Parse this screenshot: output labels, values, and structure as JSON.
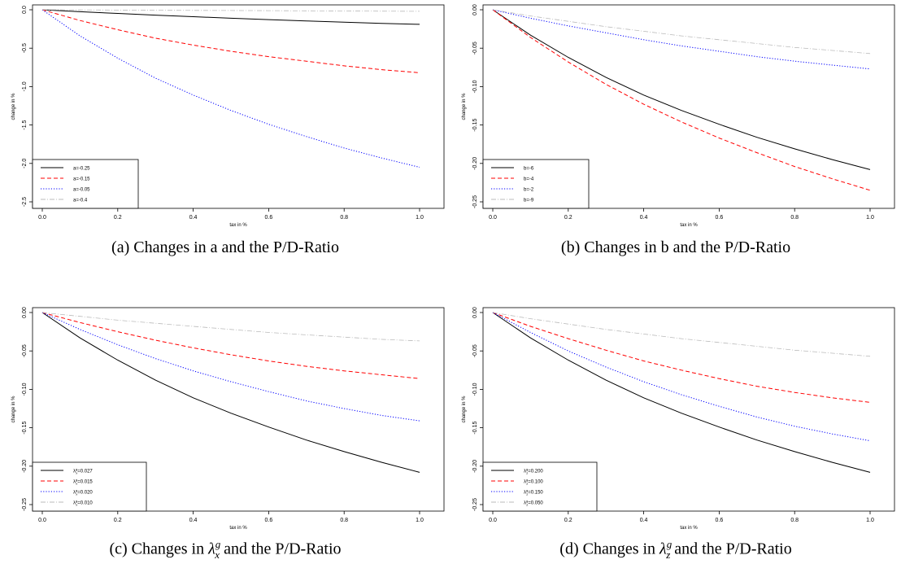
{
  "figure": {
    "captions": [
      {
        "prefix": "(a) Changes in a and the P/D-Ratio"
      },
      {
        "prefix": "(b) Changes in b and the P/D-Ratio"
      },
      {
        "prefix": "(c) Changes in ",
        "symbol": "λ",
        "sup": "g",
        "sub": "x",
        "suffix": " and the P/D-Ratio"
      },
      {
        "prefix": "(d) Changes in ",
        "symbol": "λ",
        "sup": "g",
        "sub": "z",
        "suffix": " and the P/D-Ratio"
      }
    ]
  },
  "chart_data": [
    {
      "type": "line",
      "xlabel": "tax in %",
      "ylabel": "change in %",
      "xlim": [
        0,
        1
      ],
      "ylim": [
        -2.5,
        0
      ],
      "xticks": [
        "0.0",
        "0.2",
        "0.4",
        "0.6",
        "0.8",
        "1.0"
      ],
      "yticks": [
        "0.0",
        "-0.5",
        "-1.0",
        "-1.5",
        "-2.0",
        "-2.5"
      ],
      "ytick_values": [
        0,
        -0.5,
        -1.0,
        -1.5,
        -2.0,
        -2.5
      ],
      "legend_position": "bottom-left",
      "series": [
        {
          "name": "a=-0.25",
          "color": "#000000",
          "dash": "solid",
          "x": [
            0,
            0.1,
            0.2,
            0.3,
            0.4,
            0.5,
            0.6,
            0.7,
            0.8,
            0.9,
            1.0
          ],
          "y": [
            0,
            -0.025,
            -0.048,
            -0.07,
            -0.09,
            -0.11,
            -0.128,
            -0.145,
            -0.162,
            -0.177,
            -0.19
          ]
        },
        {
          "name": "a=-0.15",
          "color": "#ff0000",
          "dash": "dashed",
          "x": [
            0,
            0.1,
            0.2,
            0.3,
            0.4,
            0.5,
            0.6,
            0.7,
            0.8,
            0.9,
            1.0
          ],
          "y": [
            0,
            -0.14,
            -0.26,
            -0.37,
            -0.46,
            -0.54,
            -0.61,
            -0.67,
            -0.73,
            -0.78,
            -0.82
          ]
        },
        {
          "name": "a=-0.05",
          "color": "#0000ff",
          "dash": "dotted",
          "x": [
            0,
            0.1,
            0.2,
            0.3,
            0.4,
            0.5,
            0.6,
            0.7,
            0.8,
            0.9,
            1.0
          ],
          "y": [
            0,
            -0.34,
            -0.63,
            -0.89,
            -1.11,
            -1.31,
            -1.49,
            -1.65,
            -1.8,
            -1.93,
            -2.05
          ]
        },
        {
          "name": "a=-0.4",
          "color": "#bbbbbb",
          "dash": "dashdot",
          "x": [
            0,
            0.1,
            0.2,
            0.3,
            0.4,
            0.5,
            0.6,
            0.7,
            0.8,
            0.9,
            1.0
          ],
          "y": [
            0,
            -0.002,
            -0.004,
            -0.006,
            -0.008,
            -0.01,
            -0.012,
            -0.014,
            -0.016,
            -0.018,
            -0.02
          ]
        }
      ]
    },
    {
      "type": "line",
      "xlabel": "tax in %",
      "ylabel": "change in %",
      "xlim": [
        0,
        1
      ],
      "ylim": [
        -0.25,
        0
      ],
      "xticks": [
        "0.0",
        "0.2",
        "0.4",
        "0.6",
        "0.8",
        "1.0"
      ],
      "yticks": [
        "0.00",
        "-0.05",
        "-0.10",
        "-0.15",
        "-0.20",
        "-0.25"
      ],
      "ytick_values": [
        0,
        -0.05,
        -0.1,
        -0.15,
        -0.2,
        -0.25
      ],
      "legend_position": "bottom-left",
      "series": [
        {
          "name": "b=-6",
          "color": "#000000",
          "dash": "solid",
          "x": [
            0,
            0.1,
            0.2,
            0.3,
            0.4,
            0.5,
            0.6,
            0.7,
            0.8,
            0.9,
            1.0
          ],
          "y": [
            0,
            -0.033,
            -0.062,
            -0.088,
            -0.111,
            -0.131,
            -0.149,
            -0.166,
            -0.181,
            -0.195,
            -0.208
          ]
        },
        {
          "name": "b=-4",
          "color": "#ff0000",
          "dash": "dashed",
          "x": [
            0,
            0.1,
            0.2,
            0.3,
            0.4,
            0.5,
            0.6,
            0.7,
            0.8,
            0.9,
            1.0
          ],
          "y": [
            0,
            -0.036,
            -0.068,
            -0.097,
            -0.123,
            -0.146,
            -0.167,
            -0.186,
            -0.204,
            -0.22,
            -0.235
          ]
        },
        {
          "name": "b=-2",
          "color": "#0000ff",
          "dash": "dotted",
          "x": [
            0,
            0.1,
            0.2,
            0.3,
            0.4,
            0.5,
            0.6,
            0.7,
            0.8,
            0.9,
            1.0
          ],
          "y": [
            0,
            -0.011,
            -0.021,
            -0.03,
            -0.039,
            -0.047,
            -0.054,
            -0.061,
            -0.067,
            -0.072,
            -0.077
          ]
        },
        {
          "name": "b=-9",
          "color": "#bbbbbb",
          "dash": "dashdot",
          "x": [
            0,
            0.1,
            0.2,
            0.3,
            0.4,
            0.5,
            0.6,
            0.7,
            0.8,
            0.9,
            1.0
          ],
          "y": [
            0,
            -0.008,
            -0.015,
            -0.022,
            -0.028,
            -0.034,
            -0.039,
            -0.044,
            -0.049,
            -0.053,
            -0.057
          ]
        }
      ]
    },
    {
      "type": "line",
      "xlabel": "tax in %",
      "ylabel": "change in %",
      "xlim": [
        0,
        1
      ],
      "ylim": [
        -0.25,
        0
      ],
      "xticks": [
        "0.0",
        "0.2",
        "0.4",
        "0.6",
        "0.8",
        "1.0"
      ],
      "yticks": [
        "0.00",
        "-0.05",
        "-0.10",
        "-0.15",
        "-0.20",
        "-0.25"
      ],
      "ytick_values": [
        0,
        -0.05,
        -0.1,
        -0.15,
        -0.2,
        -0.25
      ],
      "legend_position": "bottom-left",
      "legend_symbol": {
        "base": "λ",
        "sup": "g",
        "sub": "x"
      },
      "series": [
        {
          "name": "=0.027",
          "color": "#000000",
          "dash": "solid",
          "x": [
            0,
            0.1,
            0.2,
            0.3,
            0.4,
            0.5,
            0.6,
            0.7,
            0.8,
            0.9,
            1.0
          ],
          "y": [
            0,
            -0.033,
            -0.062,
            -0.088,
            -0.111,
            -0.131,
            -0.149,
            -0.166,
            -0.181,
            -0.195,
            -0.208
          ]
        },
        {
          "name": "=0.015",
          "color": "#ff0000",
          "dash": "dashed",
          "x": [
            0,
            0.1,
            0.2,
            0.3,
            0.4,
            0.5,
            0.6,
            0.7,
            0.8,
            0.9,
            1.0
          ],
          "y": [
            0,
            -0.013,
            -0.025,
            -0.036,
            -0.046,
            -0.055,
            -0.063,
            -0.07,
            -0.076,
            -0.081,
            -0.086
          ]
        },
        {
          "name": "=0.020",
          "color": "#0000ff",
          "dash": "dotted",
          "x": [
            0,
            0.1,
            0.2,
            0.3,
            0.4,
            0.5,
            0.6,
            0.7,
            0.8,
            0.9,
            1.0
          ],
          "y": [
            0,
            -0.022,
            -0.042,
            -0.06,
            -0.076,
            -0.09,
            -0.103,
            -0.115,
            -0.125,
            -0.134,
            -0.141
          ]
        },
        {
          "name": "=0.010",
          "color": "#bbbbbb",
          "dash": "dashdot",
          "x": [
            0,
            0.1,
            0.2,
            0.3,
            0.4,
            0.5,
            0.6,
            0.7,
            0.8,
            0.9,
            1.0
          ],
          "y": [
            0,
            -0.005,
            -0.01,
            -0.014,
            -0.018,
            -0.022,
            -0.026,
            -0.029,
            -0.032,
            -0.035,
            -0.037
          ]
        }
      ]
    },
    {
      "type": "line",
      "xlabel": "tax in %",
      "ylabel": "change in %",
      "xlim": [
        0,
        1
      ],
      "ylim": [
        -0.25,
        0
      ],
      "xticks": [
        "0.0",
        "0.2",
        "0.4",
        "0.6",
        "0.8",
        "1.0"
      ],
      "yticks": [
        "0.00",
        "-0.05",
        "-0.10",
        "-0.15",
        "-0.20",
        "-0.25"
      ],
      "ytick_values": [
        0,
        -0.05,
        -0.1,
        -0.15,
        -0.2,
        -0.25
      ],
      "legend_position": "bottom-left",
      "legend_symbol": {
        "base": "λ",
        "sup": "g",
        "sub": "z"
      },
      "series": [
        {
          "name": "=0.200",
          "color": "#000000",
          "dash": "solid",
          "x": [
            0,
            0.1,
            0.2,
            0.3,
            0.4,
            0.5,
            0.6,
            0.7,
            0.8,
            0.9,
            1.0
          ],
          "y": [
            0,
            -0.033,
            -0.062,
            -0.088,
            -0.111,
            -0.131,
            -0.149,
            -0.166,
            -0.181,
            -0.195,
            -0.208
          ]
        },
        {
          "name": "=0.100",
          "color": "#ff0000",
          "dash": "dashed",
          "x": [
            0,
            0.1,
            0.2,
            0.3,
            0.4,
            0.5,
            0.6,
            0.7,
            0.8,
            0.9,
            1.0
          ],
          "y": [
            0,
            -0.018,
            -0.034,
            -0.049,
            -0.063,
            -0.075,
            -0.086,
            -0.096,
            -0.104,
            -0.111,
            -0.117
          ]
        },
        {
          "name": "=0.150",
          "color": "#0000ff",
          "dash": "dotted",
          "x": [
            0,
            0.1,
            0.2,
            0.3,
            0.4,
            0.5,
            0.6,
            0.7,
            0.8,
            0.9,
            1.0
          ],
          "y": [
            0,
            -0.026,
            -0.05,
            -0.071,
            -0.09,
            -0.107,
            -0.122,
            -0.136,
            -0.148,
            -0.158,
            -0.167
          ]
        },
        {
          "name": "=0.050",
          "color": "#bbbbbb",
          "dash": "dashdot",
          "x": [
            0,
            0.1,
            0.2,
            0.3,
            0.4,
            0.5,
            0.6,
            0.7,
            0.8,
            0.9,
            1.0
          ],
          "y": [
            0,
            -0.008,
            -0.015,
            -0.022,
            -0.028,
            -0.034,
            -0.039,
            -0.044,
            -0.049,
            -0.053,
            -0.057
          ]
        }
      ]
    }
  ]
}
